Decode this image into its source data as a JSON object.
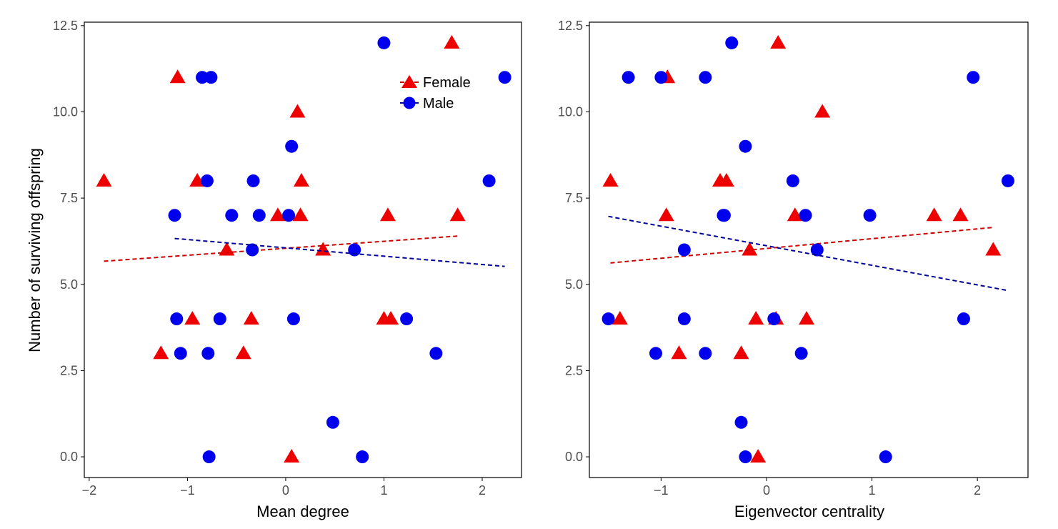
{
  "legend": {
    "female_label": "Female",
    "male_label": "Male"
  },
  "colors": {
    "female": "#ee0000",
    "male": "#0000ee",
    "female_line": "#cc0000",
    "male_line": "#000099",
    "axis": "#000000",
    "tick_text": "#4d4d4d"
  },
  "chart_data": [
    {
      "type": "scatter",
      "title": "",
      "xlabel": "Mean degree",
      "ylabel": "Number of surviving offspring",
      "xlim": [
        -2.05,
        2.4
      ],
      "ylim": [
        -0.6,
        12.6
      ],
      "x_ticks": [
        -2,
        -1,
        0,
        1,
        2
      ],
      "x_tick_labels": [
        "−2",
        "−1",
        "0",
        "1",
        "2"
      ],
      "y_ticks": [
        0,
        2.5,
        5,
        7.5,
        10,
        12.5
      ],
      "y_tick_labels": [
        "0.0",
        "2.5",
        "5.0",
        "7.5",
        "10.0",
        "12.5"
      ],
      "legend": "top-right",
      "series": [
        {
          "name": "Female",
          "marker": "triangle",
          "x": [
            -1.85,
            -1.1,
            -0.9,
            -0.95,
            -1.27,
            -0.6,
            -0.43,
            -0.35,
            -0.08,
            0.06,
            0.12,
            0.15,
            0.16,
            0.38,
            1.0,
            1.04,
            1.07,
            1.69,
            1.75
          ],
          "y": [
            8,
            11,
            8,
            4,
            3,
            6,
            3,
            4,
            7,
            0,
            10,
            7,
            8,
            6,
            4,
            7,
            4,
            12,
            7
          ],
          "trend": {
            "x": [
              -1.85,
              1.75
            ],
            "y": [
              5.67,
              6.4
            ]
          }
        },
        {
          "name": "Male",
          "marker": "circle",
          "x": [
            -1.13,
            -1.11,
            -1.07,
            -0.85,
            -0.8,
            -0.78,
            -0.79,
            -0.76,
            -0.67,
            -0.55,
            -0.33,
            -0.34,
            -0.27,
            0.03,
            0.06,
            0.08,
            0.48,
            0.7,
            0.78,
            1.0,
            1.23,
            1.53,
            2.07,
            2.23
          ],
          "y": [
            7,
            4,
            3,
            11,
            8,
            0,
            3,
            11,
            4,
            7,
            8,
            6,
            7,
            7,
            9,
            4,
            1,
            6,
            0,
            12,
            4,
            3,
            8,
            11
          ],
          "trend": {
            "x": [
              -1.13,
              2.23
            ],
            "y": [
              6.33,
              5.52
            ]
          }
        }
      ]
    },
    {
      "type": "scatter",
      "title": "",
      "xlabel": "Eigenvector centrality",
      "ylabel": "",
      "xlim": [
        -1.68,
        2.48
      ],
      "ylim": [
        -0.6,
        12.6
      ],
      "x_ticks": [
        -1,
        0,
        1,
        2
      ],
      "x_tick_labels": [
        "−1",
        "0",
        "1",
        "2"
      ],
      "y_ticks": [
        0,
        2.5,
        5,
        7.5,
        10,
        12.5
      ],
      "y_tick_labels": [
        "0.0",
        "2.5",
        "5.0",
        "7.5",
        "10.0",
        "12.5"
      ],
      "legend": "none",
      "series": [
        {
          "name": "Female",
          "marker": "triangle",
          "x": [
            -1.48,
            -1.39,
            -0.94,
            -0.95,
            -0.83,
            -0.44,
            -0.38,
            -0.24,
            -0.16,
            -0.1,
            0.09,
            0.11,
            0.27,
            0.38,
            0.53,
            1.59,
            1.84,
            2.15,
            -0.08
          ],
          "y": [
            8,
            4,
            11,
            7,
            3,
            8,
            8,
            3,
            6,
            4,
            4,
            12,
            7,
            4,
            10,
            7,
            7,
            6,
            0
          ],
          "trend": {
            "x": [
              -1.48,
              2.15
            ],
            "y": [
              5.62,
              6.65
            ]
          }
        },
        {
          "name": "Male",
          "marker": "circle",
          "x": [
            -1.5,
            -1.31,
            -1.05,
            -1.0,
            -0.78,
            -0.78,
            -0.58,
            -0.58,
            -0.41,
            -0.4,
            -0.33,
            -0.24,
            -0.2,
            -0.2,
            0.07,
            0.25,
            0.33,
            0.37,
            0.48,
            0.98,
            1.13,
            1.87,
            1.96,
            2.29
          ],
          "y": [
            4,
            11,
            3,
            11,
            6,
            4,
            11,
            3,
            7,
            7,
            12,
            1,
            9,
            0,
            4,
            8,
            3,
            7,
            6,
            7,
            0,
            4,
            11,
            8
          ],
          "trend": {
            "x": [
              -1.5,
              2.29
            ],
            "y": [
              6.97,
              4.82
            ]
          }
        }
      ]
    }
  ]
}
